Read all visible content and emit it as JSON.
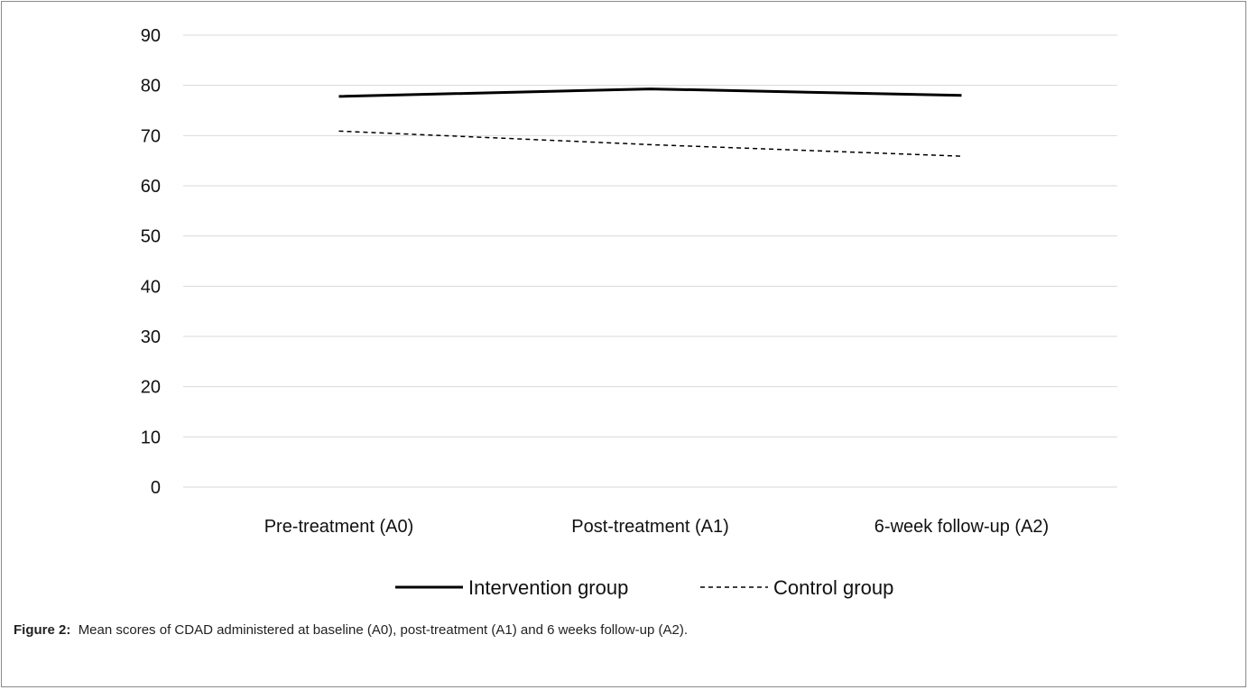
{
  "chart_data": {
    "type": "line",
    "categories": [
      "Pre-treatment (A0)",
      "Post-treatment (A1)",
      "6-week follow-up (A2)"
    ],
    "series": [
      {
        "name": "Intervention group",
        "values": [
          77.8,
          79.3,
          78.0
        ],
        "style": "solid",
        "color": "#000000"
      },
      {
        "name": "Control group",
        "values": [
          70.9,
          68.2,
          65.9
        ],
        "style": "dashed",
        "color": "#000000"
      }
    ],
    "yticks": [
      0,
      10,
      20,
      30,
      40,
      50,
      60,
      70,
      80,
      90
    ],
    "ylim": [
      0,
      90
    ],
    "grid": true,
    "legend_position": "bottom"
  },
  "caption": {
    "label": "Figure 2:",
    "text": "Mean scores of CDAD administered at baseline (A0), post-treatment (A1) and 6 weeks follow-up (A2)."
  }
}
